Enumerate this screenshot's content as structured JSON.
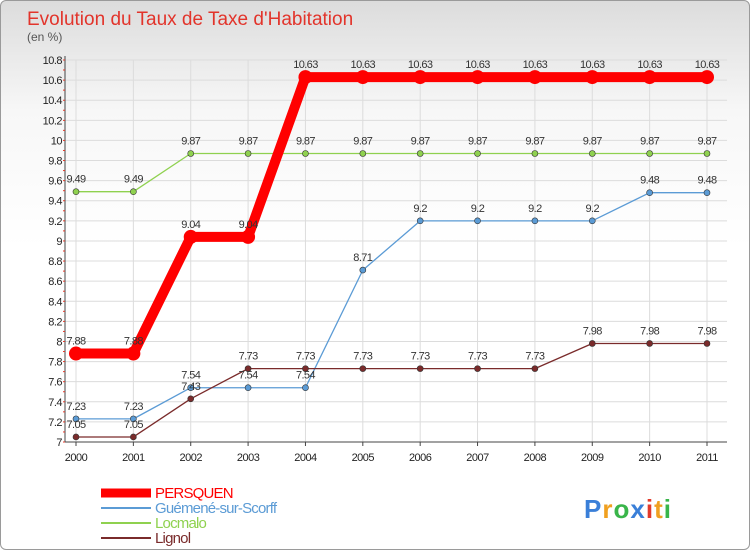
{
  "chart_data": {
    "type": "line",
    "title": "Evolution du Taux de Taxe d'Habitation",
    "subtitle": "(en %)",
    "xlabel": "",
    "ylabel": "",
    "x": [
      "2000",
      "2001",
      "2002",
      "2003",
      "2004",
      "2005",
      "2006",
      "2007",
      "2008",
      "2009",
      "2010",
      "2011"
    ],
    "ylim": [
      7,
      10.8
    ],
    "yticks": [
      "7",
      "7.2",
      "7.4",
      "7.6",
      "7.8",
      "8",
      "8.2",
      "8.4",
      "8.6",
      "8.8",
      "9",
      "9.2",
      "9.4",
      "9.6",
      "9.8",
      "10",
      "10.2",
      "10.4",
      "10.6",
      "10.8"
    ],
    "grid": true,
    "legend_position": "bottom-left",
    "series": [
      {
        "name": "PERSQUEN",
        "color": "#ff0000",
        "values": [
          7.88,
          7.88,
          9.04,
          9.04,
          10.63,
          10.63,
          10.63,
          10.63,
          10.63,
          10.63,
          10.63,
          10.63
        ],
        "labels": [
          "7.88",
          "7.88",
          "9.04",
          "9.04",
          "10.63",
          "10.63",
          "10.63",
          "10.63",
          "10.63",
          "10.63",
          "10.63",
          "10.63"
        ]
      },
      {
        "name": "Guémené-sur-Scorff",
        "color": "#5b9bd5",
        "values": [
          7.23,
          7.23,
          7.54,
          7.54,
          7.54,
          8.71,
          9.2,
          9.2,
          9.2,
          9.2,
          9.48,
          9.48
        ],
        "labels": [
          "7.23",
          "7.23",
          "7.54",
          "7.54",
          "7.54",
          "8.71",
          "9.2",
          "9.2",
          "9.2",
          "9.2",
          "9.48",
          "9.48"
        ]
      },
      {
        "name": "Locmalo",
        "color": "#8fd14f",
        "values": [
          9.49,
          9.49,
          9.87,
          9.87,
          9.87,
          9.87,
          9.87,
          9.87,
          9.87,
          9.87,
          9.87,
          9.87
        ],
        "labels": [
          "9.49",
          "9.49",
          "9.87",
          "9.87",
          "9.87",
          "9.87",
          "9.87",
          "9.87",
          "9.87",
          "9.87",
          "9.87",
          "9.87"
        ]
      },
      {
        "name": "Lignol",
        "color": "#7a2b2b",
        "values": [
          7.05,
          7.05,
          7.43,
          7.73,
          7.73,
          7.73,
          7.73,
          7.73,
          7.73,
          7.98,
          7.98,
          7.98
        ],
        "labels": [
          "7.05",
          "7.05",
          "7.43",
          "7.73",
          "7.73",
          "7.73",
          "7.73",
          "7.73",
          "7.73",
          "7.98",
          "7.98",
          "7.98"
        ]
      }
    ]
  },
  "logo": {
    "letters": [
      "P",
      "r",
      "o",
      "x",
      "i",
      "t",
      "i"
    ],
    "colors": [
      "#3a7fd8",
      "#f0a020",
      "#39b54a",
      "#3a7fd8",
      "#e23a2b",
      "#f0a020",
      "#39b54a"
    ]
  }
}
